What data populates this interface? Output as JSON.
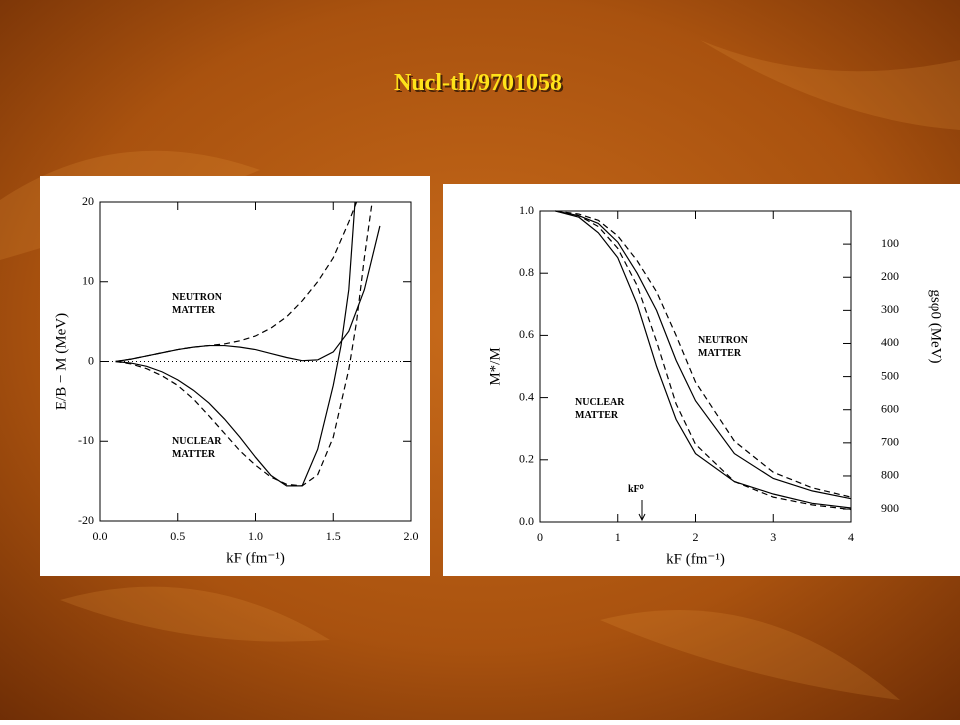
{
  "title": "Nucl-th/9701058",
  "chart_data": [
    {
      "type": "line",
      "xlabel": "kF (fm⁻¹)",
      "ylabel": "E/B − M (MeV)",
      "xlim": [
        0,
        2
      ],
      "ylim": [
        -20,
        20
      ],
      "xticks": [
        {
          "value": 0,
          "label": "0.0"
        },
        0.5,
        {
          "value": 1,
          "label": "1.0"
        },
        1.5,
        {
          "value": 2,
          "label": "2.0"
        }
      ],
      "yticks": [
        -20,
        -10,
        0,
        10,
        20
      ],
      "zero_line": true,
      "annotations": [
        [
          "NEUTRON",
          "MATTER"
        ],
        [
          "NUCLEAR",
          "MATTER"
        ]
      ],
      "series": [
        {
          "color": "#000",
          "dash": false,
          "x": [
            0.1,
            0.2,
            0.3,
            0.4,
            0.5,
            0.6,
            0.7,
            0.8,
            0.9,
            1.0,
            1.1,
            1.2,
            1.3,
            1.4,
            1.5,
            1.6,
            1.7,
            1.8
          ],
          "values": [
            0,
            0.3,
            0.7,
            1.1,
            1.5,
            1.8,
            2.0,
            2.0,
            1.8,
            1.5,
            1.0,
            0.5,
            0.1,
            0.2,
            1.2,
            3.8,
            9,
            17
          ]
        },
        {
          "color": "#000",
          "dash": true,
          "x": [
            0.1,
            0.2,
            0.3,
            0.4,
            0.5,
            0.6,
            0.7,
            0.8,
            0.9,
            1.0,
            1.1,
            1.2,
            1.3,
            1.4,
            1.5,
            1.6,
            1.65
          ],
          "values": [
            0,
            0.3,
            0.7,
            1.1,
            1.5,
            1.8,
            2.0,
            2.2,
            2.6,
            3.2,
            4.2,
            5.6,
            7.6,
            10,
            13,
            17.5,
            20
          ]
        },
        {
          "color": "#000",
          "dash": false,
          "x": [
            0.1,
            0.2,
            0.3,
            0.4,
            0.5,
            0.6,
            0.7,
            0.8,
            0.9,
            1.0,
            1.1,
            1.2,
            1.3,
            1.4,
            1.5,
            1.55,
            1.6,
            1.64
          ],
          "values": [
            0,
            -0.2,
            -0.6,
            -1.3,
            -2.3,
            -3.6,
            -5.2,
            -7.2,
            -9.5,
            -12,
            -14.3,
            -15.6,
            -15.6,
            -11,
            -3,
            2,
            9,
            20
          ]
        },
        {
          "color": "#000",
          "dash": true,
          "x": [
            0.1,
            0.2,
            0.3,
            0.4,
            0.5,
            0.6,
            0.7,
            0.8,
            0.9,
            1.0,
            1.1,
            1.2,
            1.3,
            1.4,
            1.5,
            1.6,
            1.65,
            1.7,
            1.75
          ],
          "values": [
            0,
            -0.3,
            -0.9,
            -1.8,
            -3,
            -4.7,
            -6.8,
            -9,
            -11.2,
            -13,
            -14.5,
            -15.4,
            -15.6,
            -14.2,
            -9.5,
            -1,
            5,
            13,
            20
          ]
        }
      ]
    },
    {
      "type": "line",
      "xlabel": "kF (fm⁻¹)",
      "ylabel": "M*/M",
      "y2label": "gsφ0 (MeV)",
      "xlim": [
        0,
        4
      ],
      "ylim": [
        0,
        1
      ],
      "y2lim": [
        939,
        0
      ],
      "xticks": [
        0,
        1,
        2,
        3,
        4
      ],
      "yticks": [
        {
          "value": 0,
          "label": "0.0"
        },
        0.2,
        0.4,
        0.6,
        0.8,
        {
          "value": 1,
          "label": "1.0"
        }
      ],
      "y2ticks": [
        100,
        200,
        300,
        400,
        500,
        600,
        700,
        800,
        900
      ],
      "annotations": [
        [
          "NEUTRON",
          "MATTER"
        ],
        [
          "NUCLEAR",
          "MATTER"
        ],
        [
          "kF⁰"
        ]
      ],
      "series": [
        {
          "color": "#000",
          "dash": false,
          "x": [
            0.2,
            0.5,
            0.75,
            1,
            1.25,
            1.5,
            1.75,
            2,
            2.5,
            3,
            3.5,
            4
          ],
          "values": [
            1,
            0.98,
            0.93,
            0.85,
            0.7,
            0.5,
            0.33,
            0.22,
            0.13,
            0.09,
            0.06,
            0.045
          ]
        },
        {
          "color": "#000",
          "dash": true,
          "x": [
            0.2,
            0.5,
            0.75,
            1,
            1.25,
            1.5,
            1.75,
            2,
            2.5,
            3,
            3.5,
            4
          ],
          "values": [
            1,
            0.985,
            0.95,
            0.88,
            0.76,
            0.58,
            0.38,
            0.25,
            0.13,
            0.08,
            0.055,
            0.04
          ]
        },
        {
          "color": "#000",
          "dash": false,
          "x": [
            0.2,
            0.5,
            0.75,
            1,
            1.25,
            1.5,
            1.75,
            2,
            2.5,
            3,
            3.5,
            4
          ],
          "values": [
            1,
            0.985,
            0.96,
            0.9,
            0.8,
            0.68,
            0.52,
            0.39,
            0.22,
            0.14,
            0.1,
            0.075
          ]
        },
        {
          "color": "#000",
          "dash": true,
          "x": [
            0.2,
            0.5,
            0.75,
            1,
            1.25,
            1.5,
            1.75,
            2,
            2.5,
            3,
            3.5,
            4
          ],
          "values": [
            1,
            0.99,
            0.97,
            0.92,
            0.84,
            0.74,
            0.6,
            0.45,
            0.26,
            0.16,
            0.11,
            0.08
          ]
        }
      ]
    }
  ]
}
